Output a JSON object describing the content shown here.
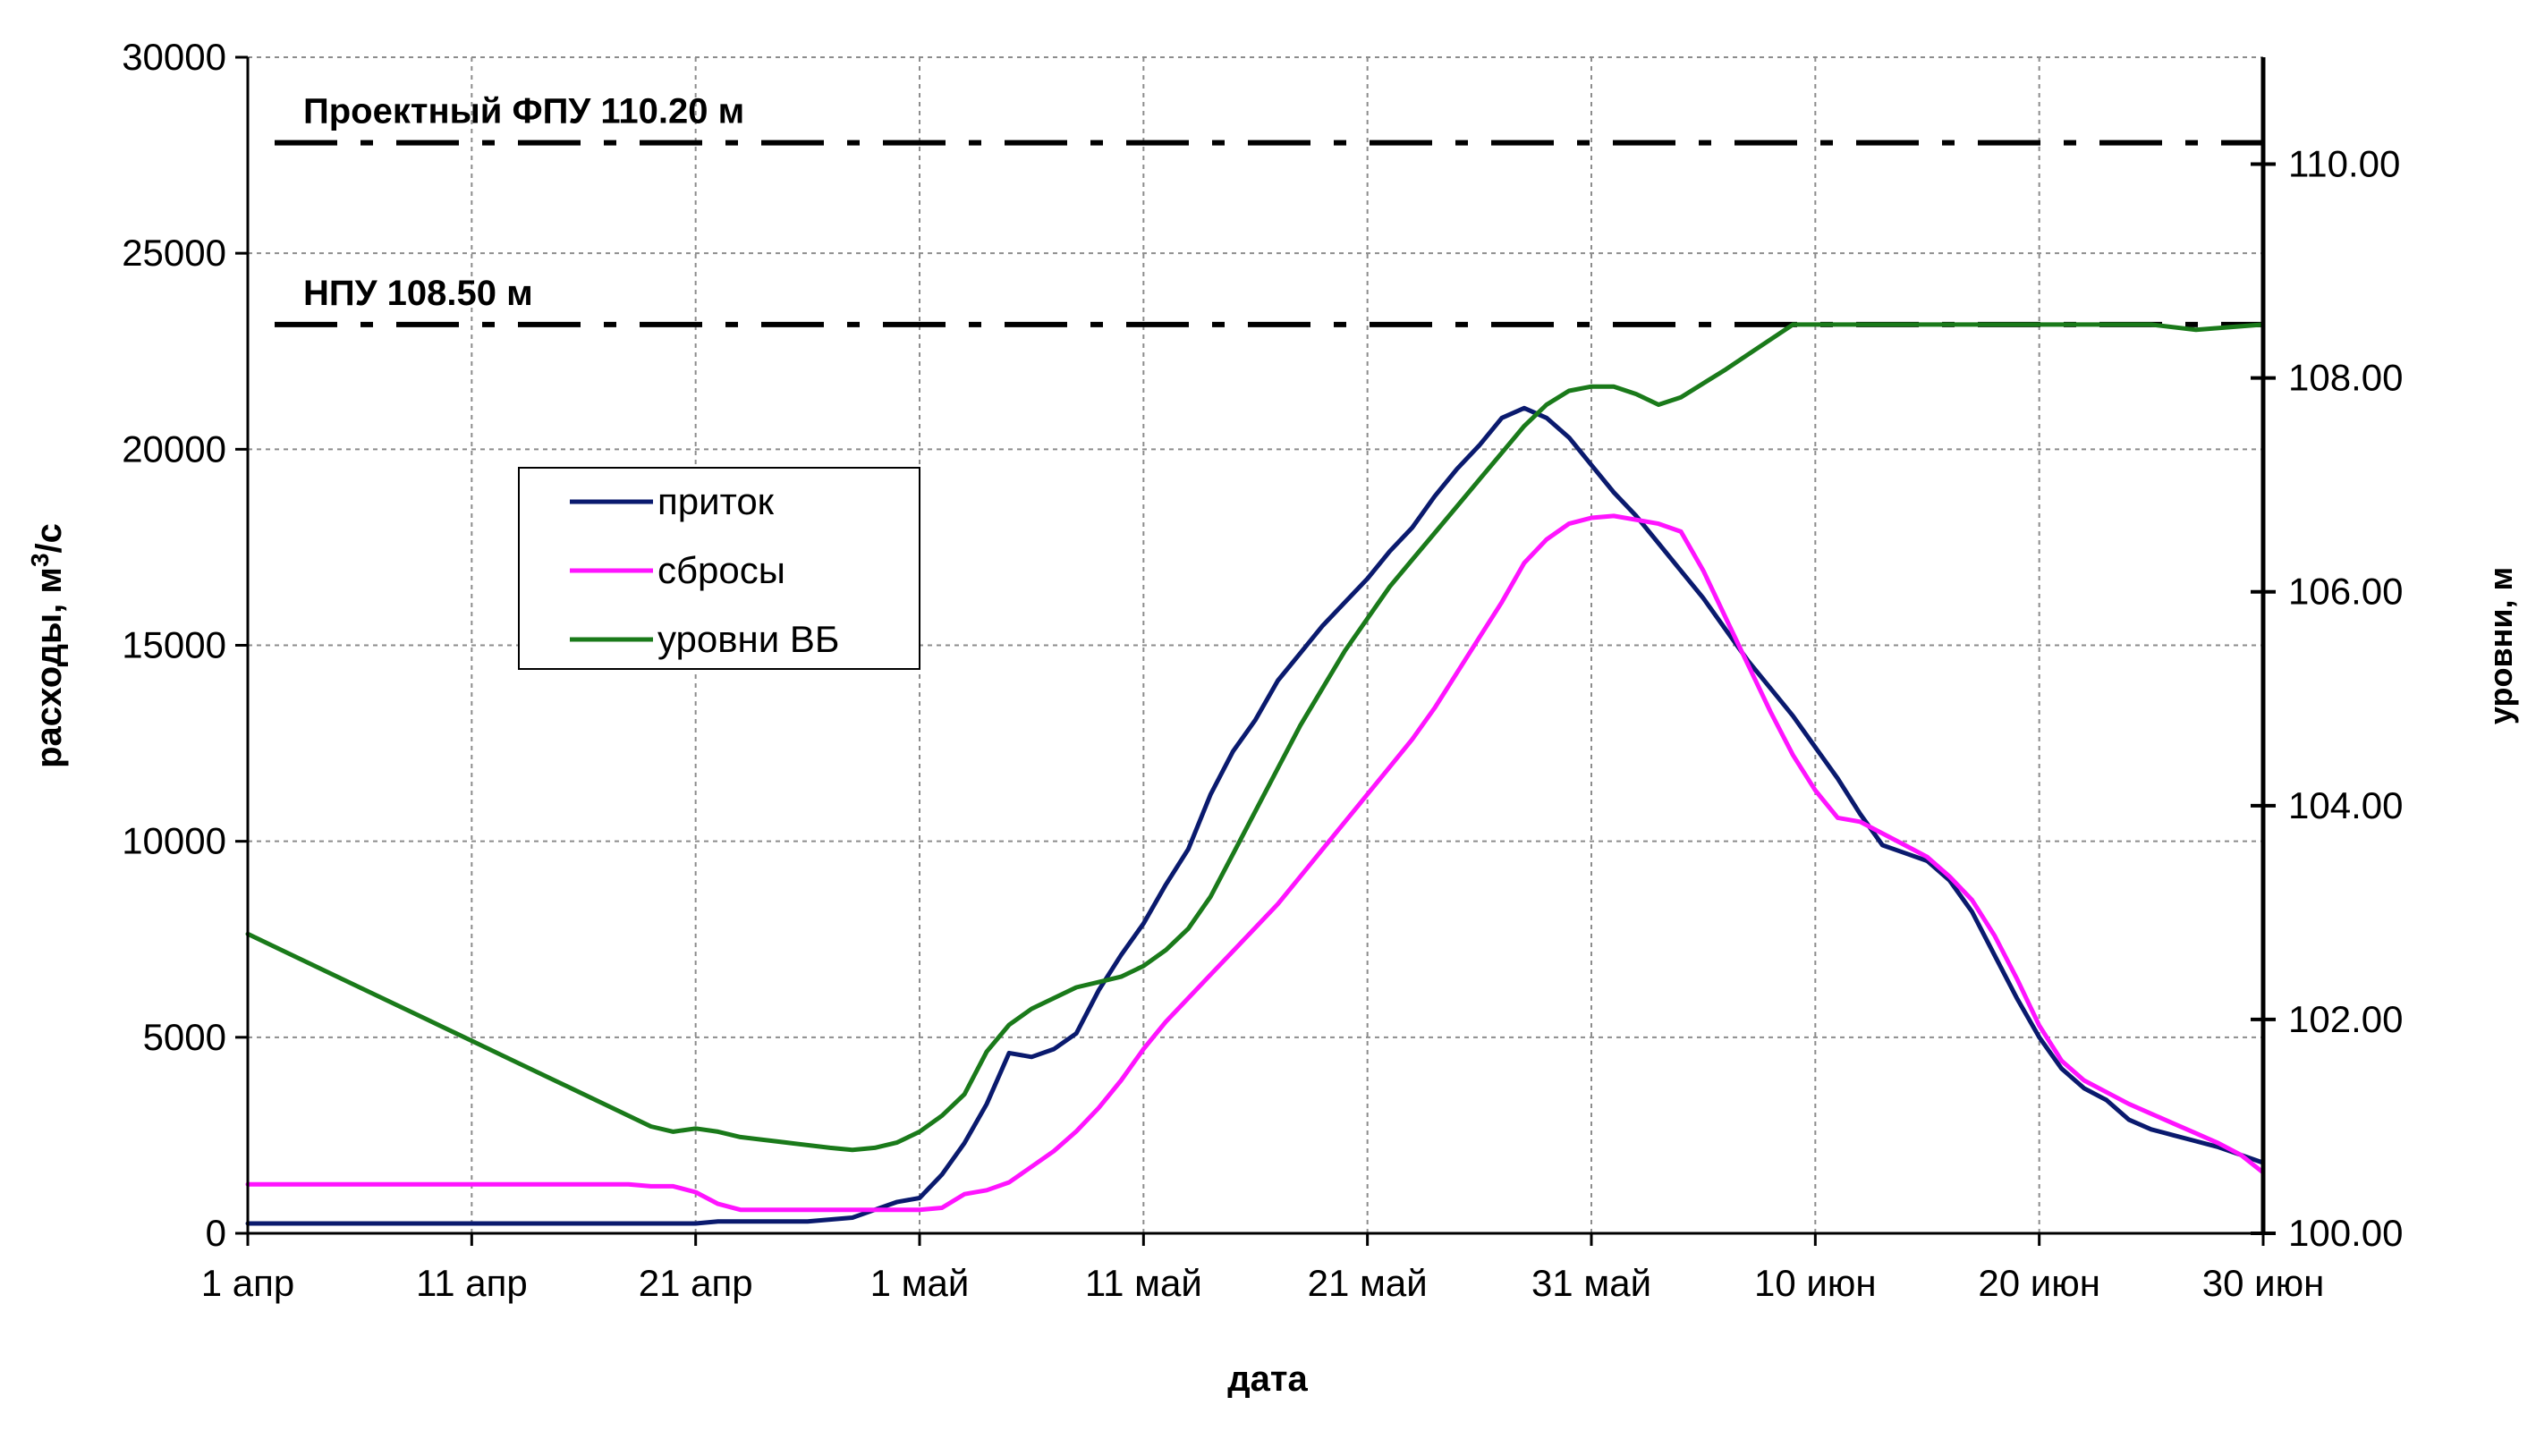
{
  "chart_data": {
    "type": "line",
    "x_axis": {
      "title": "дата",
      "range_days": [
        0,
        90
      ],
      "tick_days": [
        0,
        10,
        20,
        30,
        40,
        50,
        60,
        70,
        80,
        90
      ],
      "tick_labels": [
        "1 апр",
        "11 апр",
        "21 апр",
        "1 май",
        "11 май",
        "21 май",
        "31 май",
        "10 июн",
        "20 июн",
        "30 июн"
      ]
    },
    "y_left": {
      "title_main": "расходы, м",
      "title_sup": "3",
      "title_end": "/с",
      "range": [
        0,
        30000
      ],
      "ticks": [
        0,
        5000,
        10000,
        15000,
        20000,
        25000,
        30000
      ],
      "tick_labels": [
        "0",
        "5000",
        "10000",
        "15000",
        "20000",
        "25000",
        "30000"
      ]
    },
    "y_right": {
      "title": "уровни, м",
      "range": [
        100.0,
        111.0
      ],
      "ticks": [
        100,
        102,
        104,
        106,
        108,
        110
      ],
      "tick_labels": [
        "100.00",
        "102.00",
        "104.00",
        "106.00",
        "108.00",
        "110.00"
      ]
    },
    "reference_lines": [
      {
        "label": "Проектный ФПУ 110.20 м",
        "value": 110.2
      },
      {
        "label": "НПУ 108.50 м",
        "value": 108.5
      }
    ],
    "legend": {
      "position": "center-left"
    },
    "grid": true,
    "series": [
      {
        "name": "приток",
        "axis": "left",
        "color": "#0a1a6e",
        "points": [
          [
            0,
            250
          ],
          [
            10,
            250
          ],
          [
            20,
            250
          ],
          [
            21,
            300
          ],
          [
            24,
            300
          ],
          [
            25,
            300
          ],
          [
            27,
            400
          ],
          [
            28,
            600
          ],
          [
            29,
            800
          ],
          [
            30,
            900
          ],
          [
            31,
            1500
          ],
          [
            32,
            2300
          ],
          [
            33,
            3300
          ],
          [
            34,
            4600
          ],
          [
            35,
            4500
          ],
          [
            36,
            4700
          ],
          [
            37,
            5100
          ],
          [
            38,
            6200
          ],
          [
            39,
            7100
          ],
          [
            40,
            7900
          ],
          [
            41,
            8900
          ],
          [
            42,
            9800
          ],
          [
            43,
            11200
          ],
          [
            44,
            12300
          ],
          [
            45,
            13100
          ],
          [
            46,
            14100
          ],
          [
            47,
            14800
          ],
          [
            48,
            15500
          ],
          [
            49,
            16100
          ],
          [
            50,
            16700
          ],
          [
            51,
            17400
          ],
          [
            52,
            18000
          ],
          [
            53,
            18800
          ],
          [
            54,
            19500
          ],
          [
            55,
            20100
          ],
          [
            56,
            20800
          ],
          [
            57,
            21050
          ],
          [
            58,
            20800
          ],
          [
            59,
            20300
          ],
          [
            60,
            19600
          ],
          [
            61,
            18900
          ],
          [
            62,
            18300
          ],
          [
            63,
            17600
          ],
          [
            64,
            16900
          ],
          [
            65,
            16200
          ],
          [
            66,
            15400
          ],
          [
            67,
            14600
          ],
          [
            68,
            13900
          ],
          [
            69,
            13200
          ],
          [
            70,
            12400
          ],
          [
            71,
            11600
          ],
          [
            72,
            10700
          ],
          [
            73,
            9900
          ],
          [
            74,
            9700
          ],
          [
            75,
            9500
          ],
          [
            76,
            9000
          ],
          [
            77,
            8200
          ],
          [
            78,
            7100
          ],
          [
            79,
            6000
          ],
          [
            80,
            5000
          ],
          [
            81,
            4200
          ],
          [
            82,
            3700
          ],
          [
            83,
            3400
          ],
          [
            84,
            2900
          ],
          [
            85,
            2650
          ],
          [
            86,
            2500
          ],
          [
            87,
            2350
          ],
          [
            88,
            2200
          ],
          [
            89,
            2000
          ],
          [
            90,
            1800
          ]
        ]
      },
      {
        "name": "сбросы",
        "axis": "left",
        "color": "#ff14ff",
        "points": [
          [
            0,
            1250
          ],
          [
            17,
            1250
          ],
          [
            18,
            1200
          ],
          [
            19,
            1200
          ],
          [
            20,
            1050
          ],
          [
            21,
            750
          ],
          [
            22,
            600
          ],
          [
            29,
            600
          ],
          [
            30,
            600
          ],
          [
            31,
            650
          ],
          [
            32,
            1000
          ],
          [
            33,
            1100
          ],
          [
            34,
            1300
          ],
          [
            35,
            1700
          ],
          [
            36,
            2100
          ],
          [
            37,
            2600
          ],
          [
            38,
            3200
          ],
          [
            39,
            3900
          ],
          [
            40,
            4700
          ],
          [
            41,
            5400
          ],
          [
            42,
            6000
          ],
          [
            43,
            6600
          ],
          [
            44,
            7200
          ],
          [
            45,
            7800
          ],
          [
            46,
            8400
          ],
          [
            47,
            9100
          ],
          [
            48,
            9800
          ],
          [
            49,
            10500
          ],
          [
            50,
            11200
          ],
          [
            51,
            11900
          ],
          [
            52,
            12600
          ],
          [
            53,
            13400
          ],
          [
            54,
            14300
          ],
          [
            55,
            15200
          ],
          [
            56,
            16100
          ],
          [
            57,
            17100
          ],
          [
            58,
            17700
          ],
          [
            59,
            18100
          ],
          [
            60,
            18250
          ],
          [
            61,
            18300
          ],
          [
            62,
            18200
          ],
          [
            63,
            18100
          ],
          [
            64,
            17900
          ],
          [
            65,
            16900
          ],
          [
            66,
            15700
          ],
          [
            67,
            14500
          ],
          [
            68,
            13300
          ],
          [
            69,
            12200
          ],
          [
            70,
            11300
          ],
          [
            71,
            10600
          ],
          [
            72,
            10500
          ],
          [
            73,
            10200
          ],
          [
            74,
            9900
          ],
          [
            75,
            9600
          ],
          [
            76,
            9100
          ],
          [
            77,
            8500
          ],
          [
            78,
            7600
          ],
          [
            79,
            6500
          ],
          [
            80,
            5300
          ],
          [
            81,
            4400
          ],
          [
            82,
            3900
          ],
          [
            83,
            3600
          ],
          [
            84,
            3300
          ],
          [
            85,
            3050
          ],
          [
            86,
            2800
          ],
          [
            87,
            2550
          ],
          [
            88,
            2300
          ],
          [
            89,
            2000
          ],
          [
            90,
            1550
          ]
        ]
      },
      {
        "name": "уровни ВБ",
        "axis": "right",
        "color": "#1a7a1a",
        "points": [
          [
            0,
            102.8
          ],
          [
            2,
            102.6
          ],
          [
            4,
            102.4
          ],
          [
            6,
            102.2
          ],
          [
            8,
            102.0
          ],
          [
            10,
            101.8
          ],
          [
            12,
            101.6
          ],
          [
            14,
            101.4
          ],
          [
            16,
            101.2
          ],
          [
            18,
            101.0
          ],
          [
            19,
            100.95
          ],
          [
            20,
            100.98
          ],
          [
            21,
            100.95
          ],
          [
            22,
            100.9
          ],
          [
            24,
            100.85
          ],
          [
            26,
            100.8
          ],
          [
            27,
            100.78
          ],
          [
            28,
            100.8
          ],
          [
            29,
            100.85
          ],
          [
            30,
            100.95
          ],
          [
            31,
            101.1
          ],
          [
            32,
            101.3
          ],
          [
            33,
            101.7
          ],
          [
            34,
            101.95
          ],
          [
            35,
            102.1
          ],
          [
            36,
            102.2
          ],
          [
            37,
            102.3
          ],
          [
            38,
            102.35
          ],
          [
            39,
            102.4
          ],
          [
            40,
            102.5
          ],
          [
            41,
            102.65
          ],
          [
            42,
            102.85
          ],
          [
            43,
            103.15
          ],
          [
            44,
            103.55
          ],
          [
            45,
            103.95
          ],
          [
            46,
            104.35
          ],
          [
            47,
            104.75
          ],
          [
            48,
            105.1
          ],
          [
            49,
            105.45
          ],
          [
            50,
            105.75
          ],
          [
            51,
            106.05
          ],
          [
            52,
            106.3
          ],
          [
            53,
            106.55
          ],
          [
            54,
            106.8
          ],
          [
            55,
            107.05
          ],
          [
            56,
            107.3
          ],
          [
            57,
            107.55
          ],
          [
            58,
            107.75
          ],
          [
            59,
            107.88
          ],
          [
            60,
            107.92
          ],
          [
            61,
            107.92
          ],
          [
            62,
            107.85
          ],
          [
            63,
            107.75
          ],
          [
            64,
            107.82
          ],
          [
            65,
            107.95
          ],
          [
            66,
            108.08
          ],
          [
            67,
            108.22
          ],
          [
            68,
            108.36
          ],
          [
            69,
            108.5
          ],
          [
            70,
            108.5
          ],
          [
            75,
            108.5
          ],
          [
            80,
            108.5
          ],
          [
            85,
            108.5
          ],
          [
            87,
            108.45
          ],
          [
            90,
            108.5
          ]
        ]
      }
    ]
  }
}
